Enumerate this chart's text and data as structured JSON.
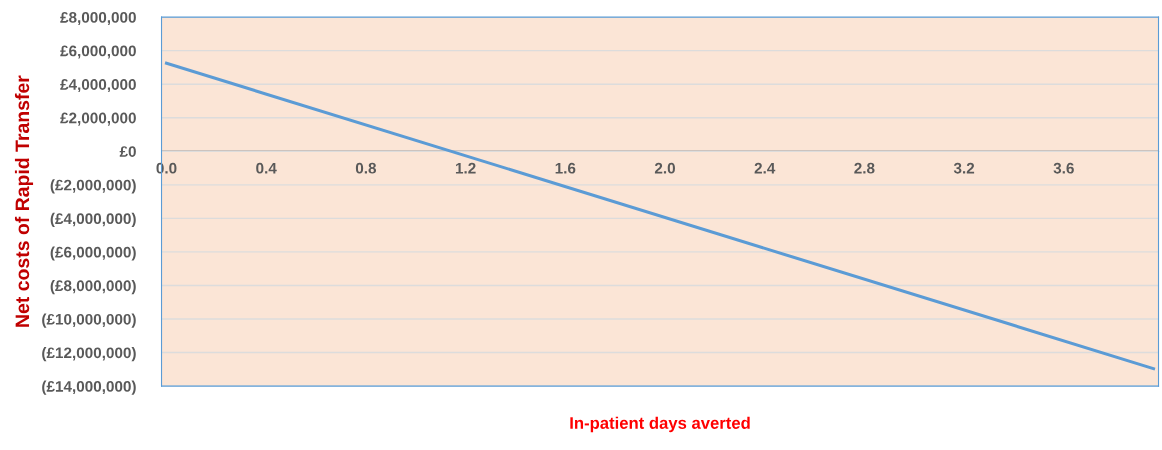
{
  "chart_data": {
    "type": "line",
    "xlabel": "In-patient days averted",
    "ylabel": "Net costs of Rapid Transfer",
    "x": [
      0.0,
      3.96
    ],
    "series": [
      {
        "color": "#5b9bd5",
        "values": [
          5250000,
          -12960000
        ]
      }
    ],
    "xlim": [
      -0.02,
      3.98
    ],
    "xticks": [
      {
        "value": 0,
        "label": "0.0"
      },
      0.4,
      0.8,
      1.2,
      1.6,
      {
        "value": 2,
        "label": "2.0"
      },
      2.4,
      2.8,
      3.2,
      3.6
    ],
    "ylim": [
      -14000000,
      8000000
    ],
    "yticks": [
      {
        "value": -14000000,
        "label": "(£14,000,000)"
      },
      {
        "value": -12000000,
        "label": "(£12,000,000)"
      },
      {
        "value": -10000000,
        "label": "(£10,000,000)"
      },
      {
        "value": -8000000,
        "label": "(£8,000,000)"
      },
      {
        "value": -6000000,
        "label": "(£6,000,000)"
      },
      {
        "value": -4000000,
        "label": "(£4,000,000)"
      },
      {
        "value": -2000000,
        "label": "(£2,000,000)"
      },
      {
        "value": 0,
        "label": "£0"
      },
      {
        "value": 2000000,
        "label": "£2,000,000"
      },
      {
        "value": 4000000,
        "label": "£4,000,000"
      },
      {
        "value": 6000000,
        "label": "£6,000,000"
      },
      {
        "value": 8000000,
        "label": "£8,000,000"
      }
    ],
    "grid": "y",
    "legend": false
  }
}
